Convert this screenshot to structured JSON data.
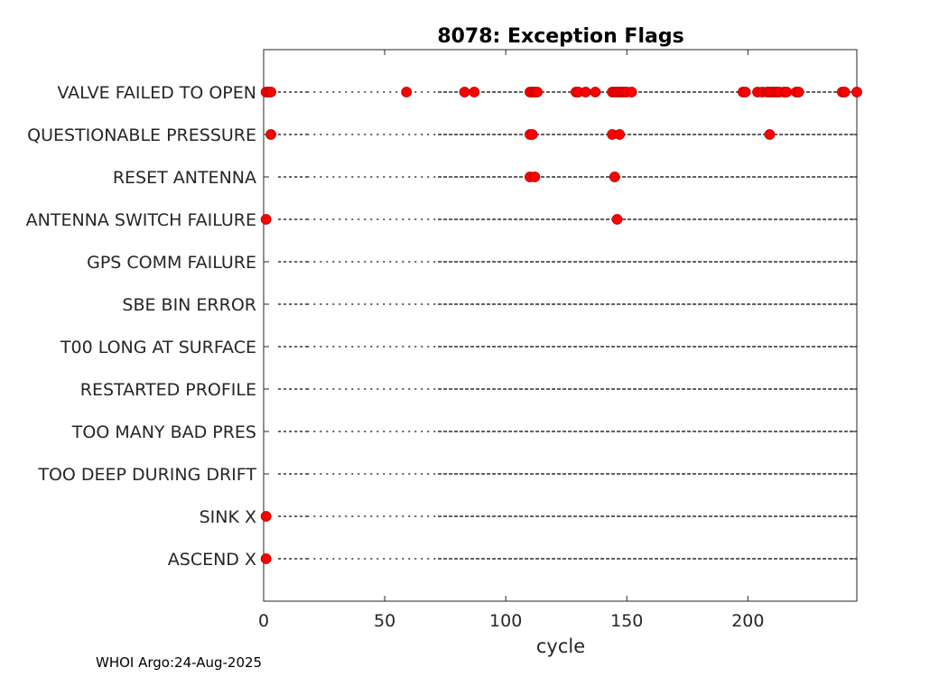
{
  "chart_data": {
    "type": "scatter",
    "title": "8078: Exception Flags",
    "xlabel": "cycle",
    "ylabel": "",
    "xlim": [
      0,
      245
    ],
    "xticks": [
      0,
      50,
      100,
      150,
      200
    ],
    "marker_color": "#ff0000",
    "line_color": "#000000",
    "categories": [
      "VALVE FAILED TO OPEN",
      "QUESTIONABLE PRESSURE",
      "RESET ANTENNA",
      "ANTENNA SWITCH FAILURE",
      "GPS COMM FAILURE",
      "SBE BIN ERROR",
      "T00 LONG AT SURFACE",
      "RESTARTED PROFILE",
      "TOO MANY BAD PRES",
      "TOO DEEP DURING DRIFT",
      "SINK X",
      "ASCEND X"
    ],
    "series": [
      {
        "name": "VALVE FAILED TO OPEN",
        "x": [
          1,
          2,
          3,
          59,
          83,
          87,
          110,
          111,
          112,
          113,
          129,
          130,
          133,
          137,
          144,
          145,
          146,
          147,
          148,
          149,
          150,
          152,
          198,
          199,
          204,
          206,
          208,
          209,
          210,
          211,
          212,
          213,
          215,
          216,
          220,
          221,
          239,
          240,
          245
        ]
      },
      {
        "name": "QUESTIONABLE PRESSURE",
        "x": [
          3,
          110,
          111,
          144,
          147,
          209
        ]
      },
      {
        "name": "RESET ANTENNA",
        "x": [
          110,
          112,
          145
        ]
      },
      {
        "name": "ANTENNA SWITCH FAILURE",
        "x": [
          1,
          146
        ]
      },
      {
        "name": "GPS COMM FAILURE",
        "x": []
      },
      {
        "name": "SBE BIN ERROR",
        "x": []
      },
      {
        "name": "T00 LONG AT SURFACE",
        "x": []
      },
      {
        "name": "RESTARTED PROFILE",
        "x": []
      },
      {
        "name": "TOO MANY BAD PRES",
        "x": []
      },
      {
        "name": "TOO DEEP DURING DRIFT",
        "x": []
      },
      {
        "name": "SINK X",
        "x": [
          1
        ]
      },
      {
        "name": "ASCEND X",
        "x": [
          1
        ]
      }
    ]
  },
  "footer": {
    "text": "WHOI Argo:24-Aug-2025"
  }
}
